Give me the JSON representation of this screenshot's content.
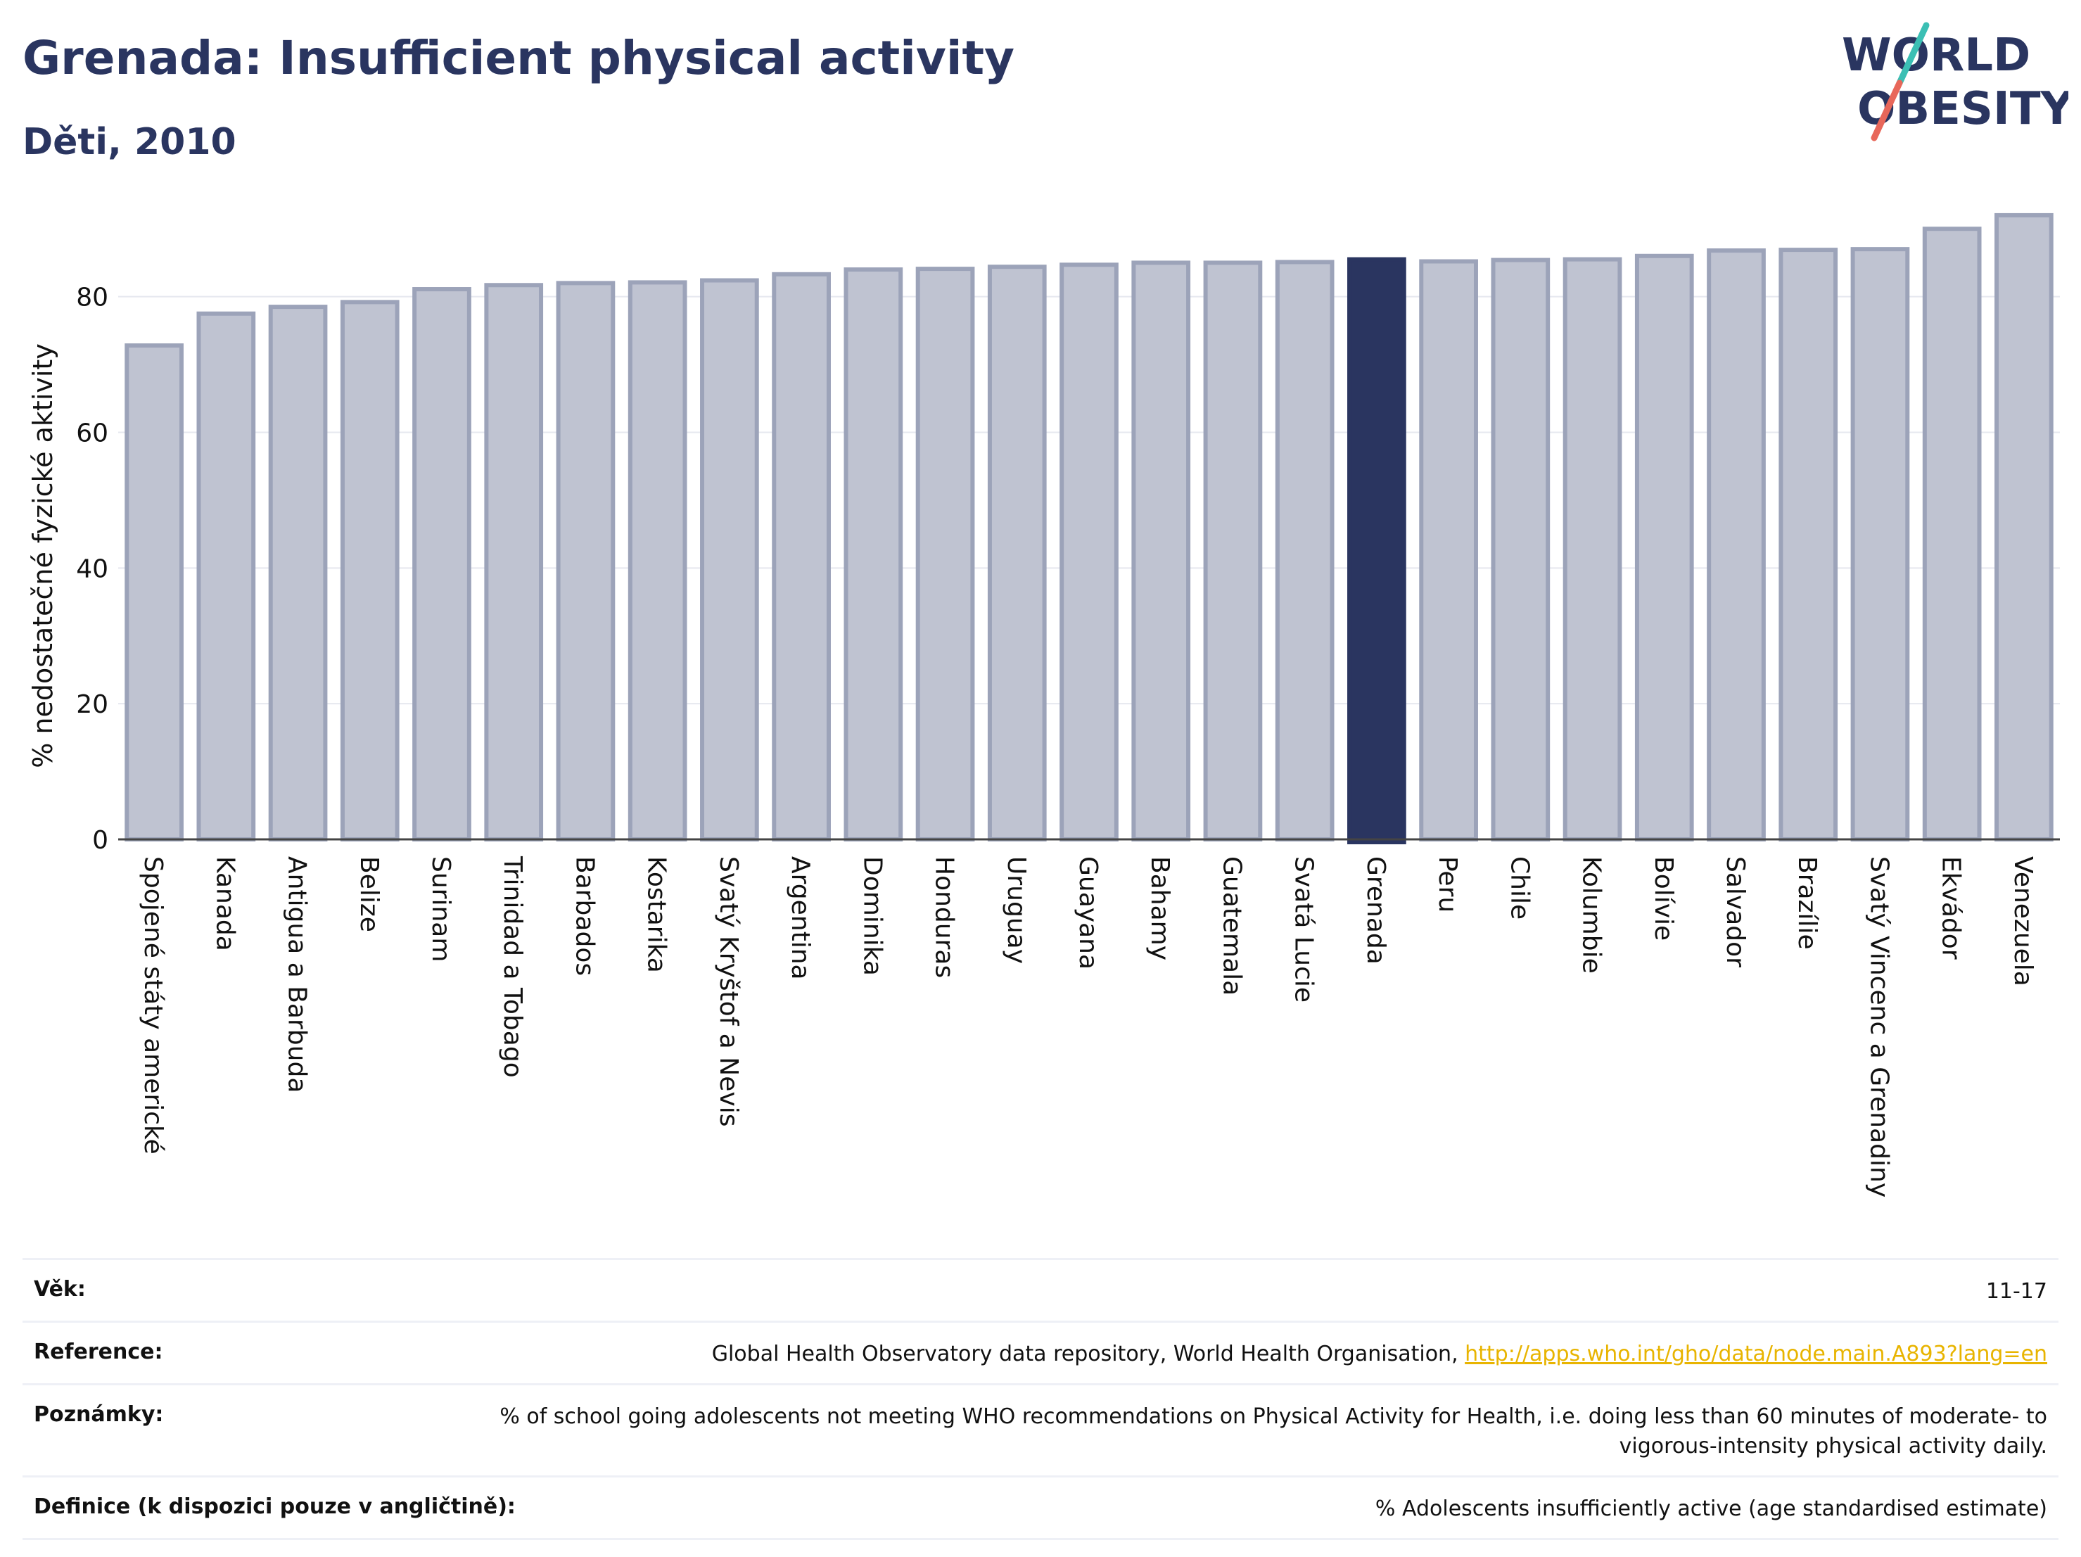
{
  "header": {
    "title": "Grenada: Insufficient physical activity",
    "subtitle": "Děti, 2010"
  },
  "logo": {
    "line1": "WORLD",
    "line2": "OBESITY",
    "accent_colors": [
      "#3bbfb4",
      "#e8675a"
    ]
  },
  "colors": {
    "bar": "#bfc3d1",
    "bar_border": "#9ca3b9",
    "highlight": "#2a3560",
    "axis_text": "#111111",
    "grid": "#e6e8ef"
  },
  "chart_data": {
    "type": "bar",
    "ylabel": "% nedostatečné fyzické aktivity",
    "ylim": [
      0,
      95
    ],
    "yticks": [
      0,
      20,
      40,
      60,
      80
    ],
    "highlight": "Grenada",
    "categories": [
      "Spojené státy americké",
      "Kanada",
      "Antigua a Barbuda",
      "Belize",
      "Surinam",
      "Trinidad a Tobago",
      "Barbados",
      "Kostarika",
      "Svatý Kryštof a Nevis",
      "Argentina",
      "Dominika",
      "Honduras",
      "Uruguay",
      "Guayana",
      "Bahamy",
      "Guatemala",
      "Svatá Lucie",
      "Grenada",
      "Peru",
      "Chile",
      "Kolumbie",
      "Bolívie",
      "Salvador",
      "Brazílie",
      "Svatý Vincenc a Grenadiny",
      "Ekvádor",
      "Venezuela"
    ],
    "values": [
      72.8,
      77.5,
      78.5,
      79.2,
      81.1,
      81.7,
      82.0,
      82.1,
      82.4,
      83.3,
      84.0,
      84.1,
      84.4,
      84.7,
      85.0,
      85.0,
      85.1,
      85.5,
      85.2,
      85.4,
      85.5,
      86.0,
      86.8,
      86.9,
      87.0,
      90.0,
      92.0
    ],
    "grid": true
  },
  "meta": {
    "age_label": "Věk:",
    "age_value": "11-17",
    "reference_label": "Reference:",
    "reference_text": "Global Health Observatory data repository, World Health Organisation, ",
    "reference_link": "http://apps.who.int/gho/data/node.main.A893?lang=en",
    "notes_label": "Poznámky:",
    "notes_value": "% of school going adolescents not meeting WHO recommendations on Physical Activity for Health, i.e. doing less than 60 minutes of moderate- to vigorous-intensity physical activity daily.",
    "definition_label": "Definice (k dispozici pouze v angličtině):",
    "definition_value": "% Adolescents insufficiently active (age standardised estimate)"
  }
}
